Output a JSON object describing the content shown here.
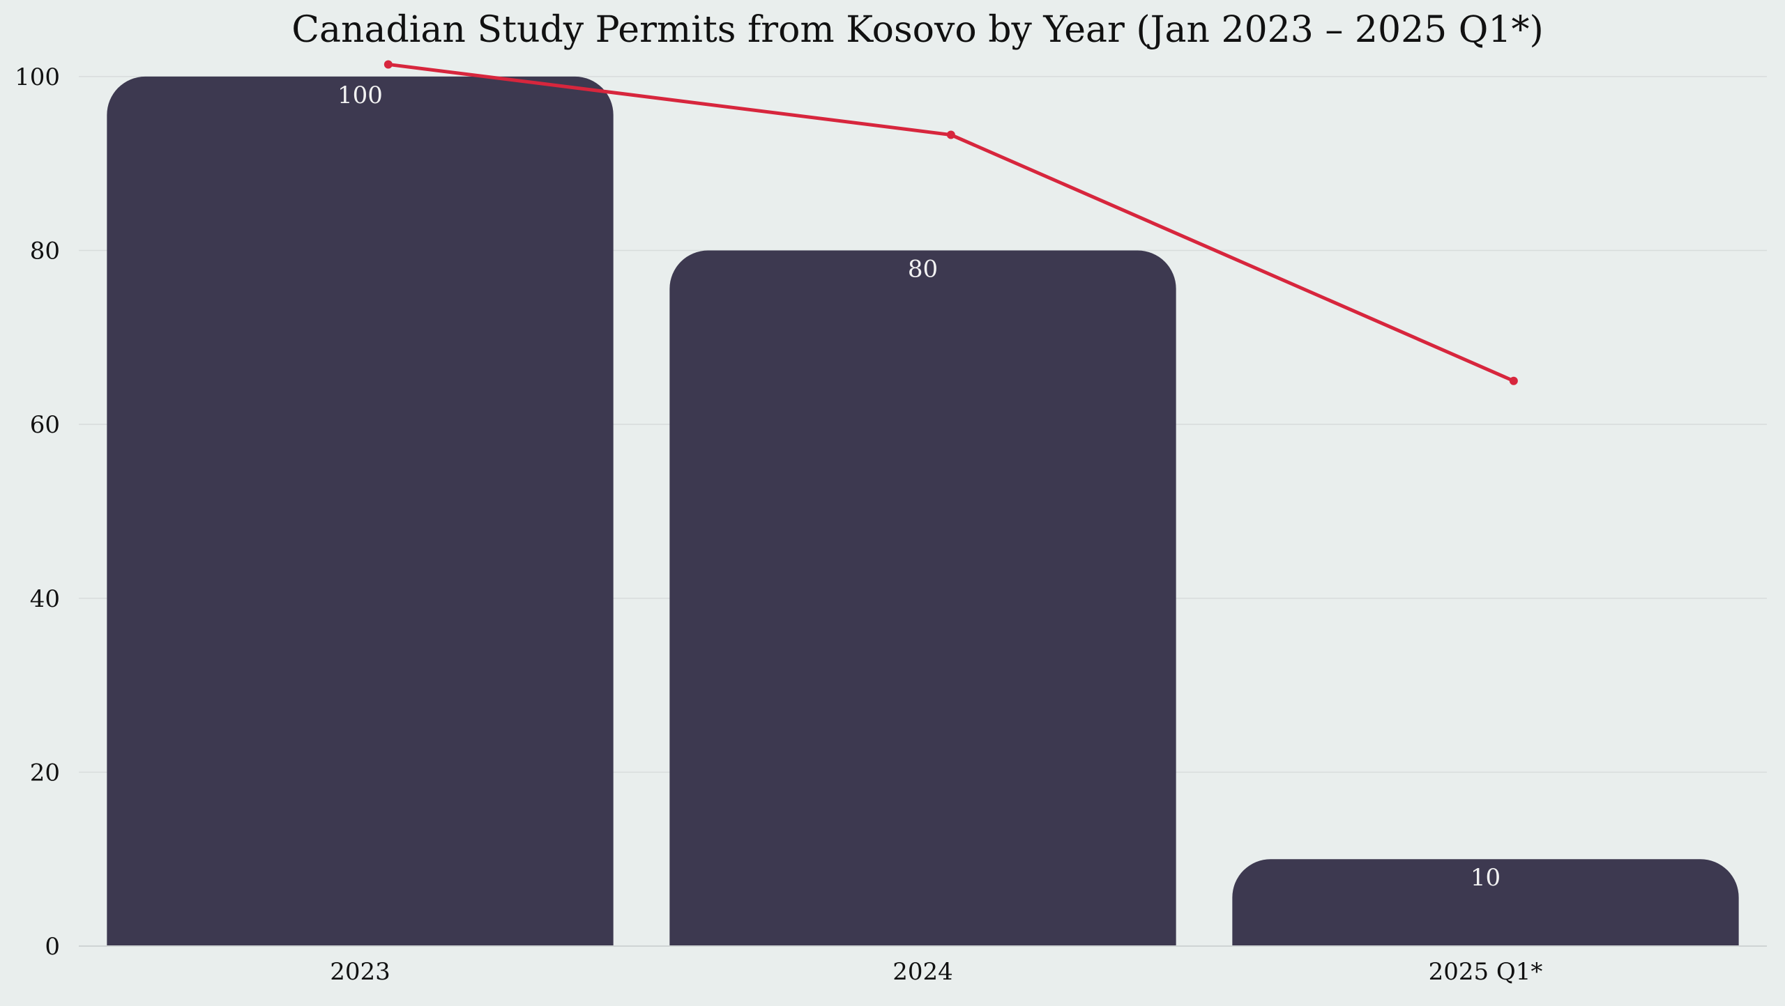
{
  "colors": {
    "background": "#e9eeed",
    "bar": "#3d3950",
    "bar_label": "#f2f2f2",
    "trend_line": "#d7263d",
    "grid": "#d8dcdc",
    "text": "#111111"
  },
  "chart_data": {
    "type": "bar",
    "title": "Canadian Study Permits from Kosovo by Year (Jan 2023 – 2025 Q1*)",
    "xlabel": "",
    "ylabel": "",
    "categories": [
      "2023",
      "2024",
      "2025 Q1*"
    ],
    "values": [
      100,
      80,
      10
    ],
    "data_labels": [
      "100",
      "80",
      "10"
    ],
    "ylim": [
      0,
      104
    ],
    "yticks": [
      0,
      20,
      40,
      60,
      80,
      100
    ],
    "ytick_labels": [
      "0",
      "20",
      "40",
      "60",
      "80",
      "100"
    ],
    "grid": "horizontal",
    "legend": "none",
    "overlay_line": {
      "type": "line",
      "values": [
        101.4,
        93.3,
        65
      ]
    }
  }
}
